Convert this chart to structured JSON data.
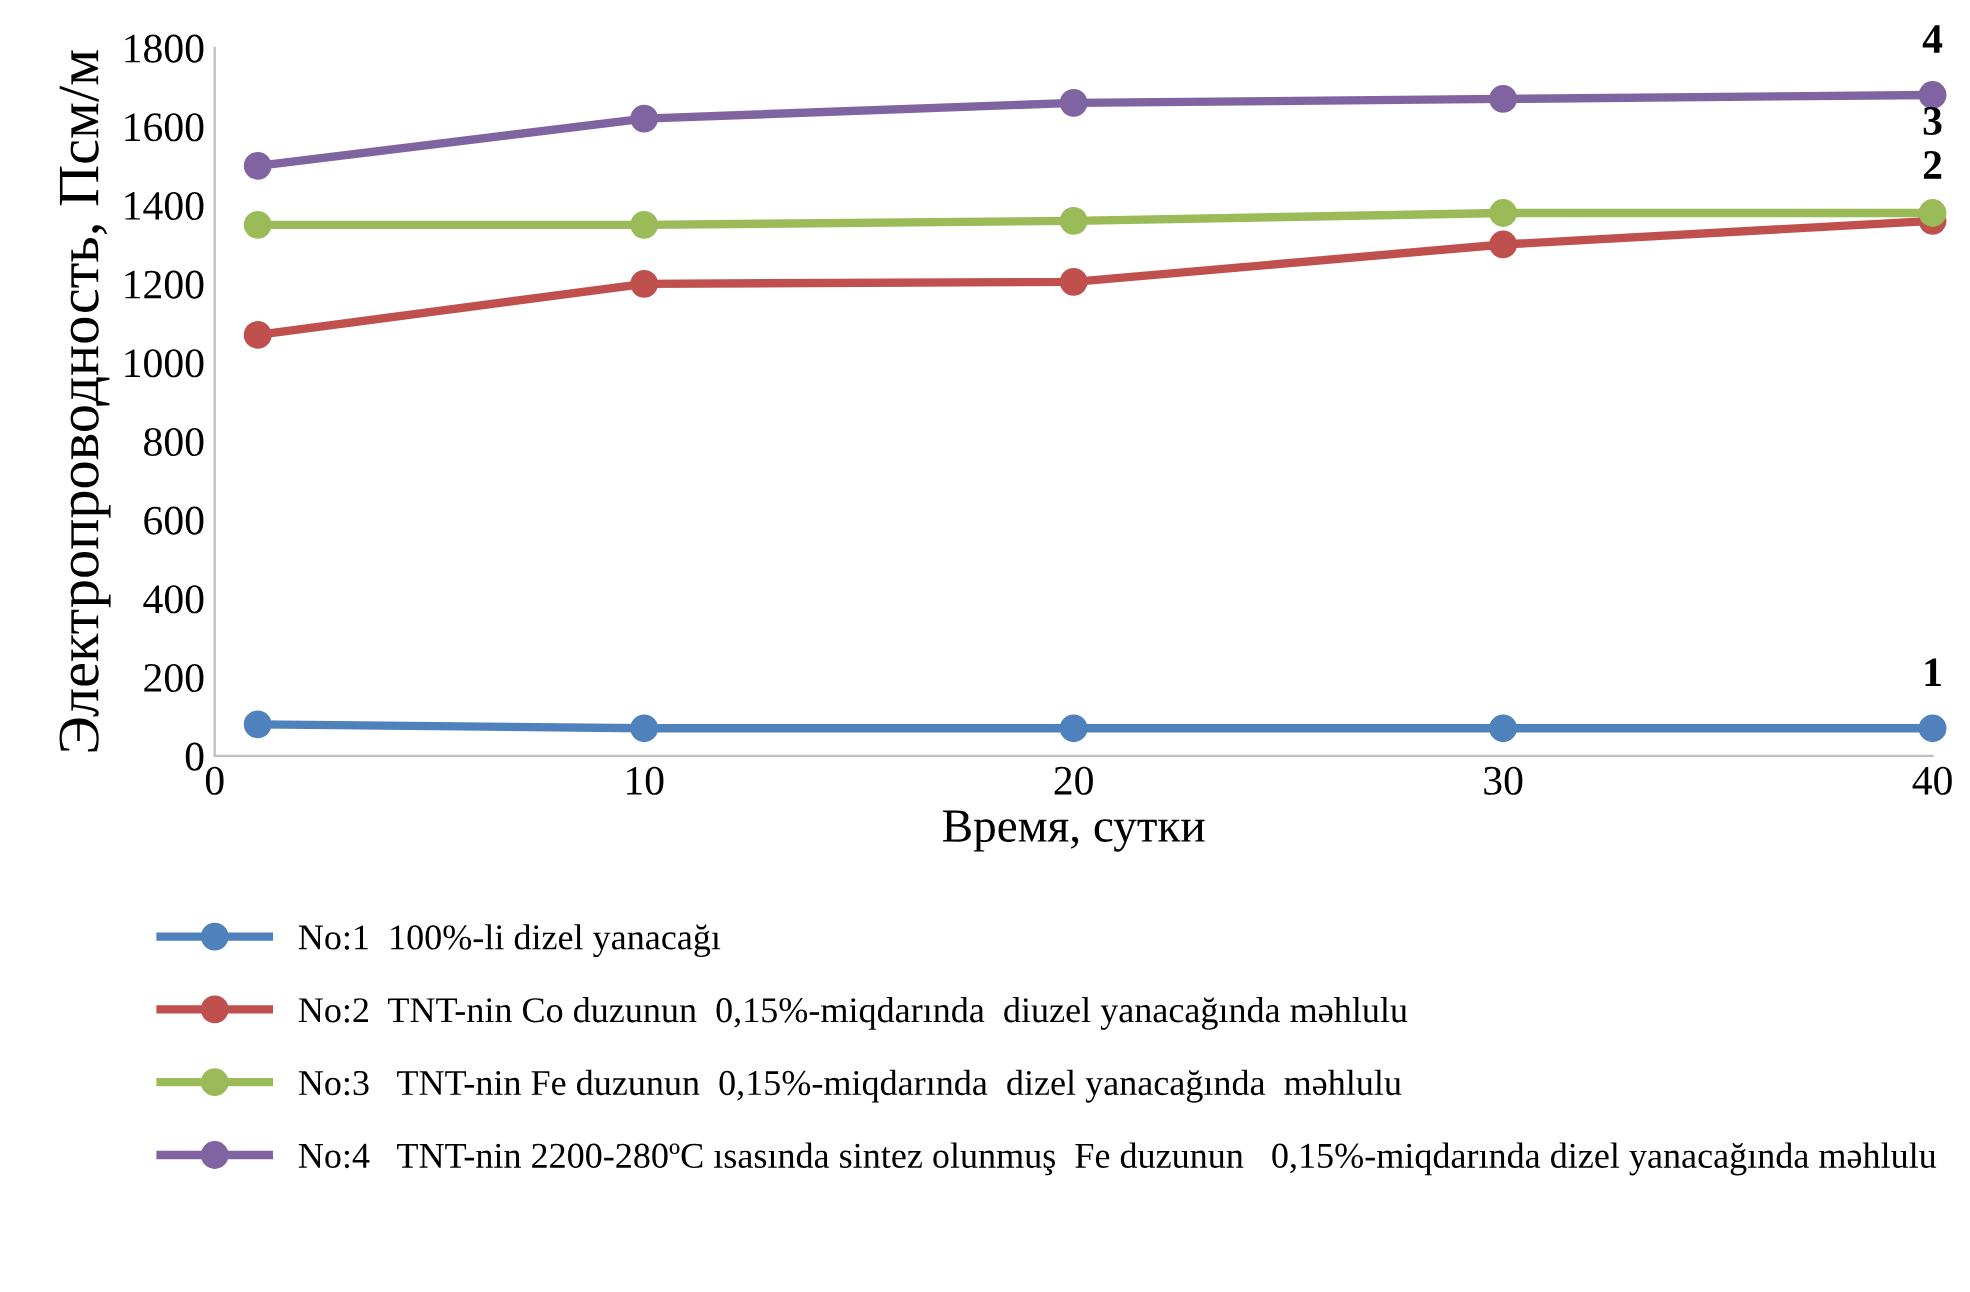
{
  "chart_data": {
    "type": "line",
    "xlabel": "Время, сутки",
    "ylabel": "Электропроводность, Псм/м",
    "x": [
      1,
      10,
      20,
      30,
      40
    ],
    "series": [
      {
        "name": "No:1  100%-li dizel yanacağı",
        "color": "#4f81bd",
        "values": [
          80,
          70,
          70,
          70,
          70
        ]
      },
      {
        "name": "No:2  TNT-nin Co duzunun  0,15%-miqdarında  diuzel yanacağında məhlulu",
        "color": "#c0504d",
        "values": [
          1070,
          1200,
          1205,
          1300,
          1360
        ]
      },
      {
        "name": "No:3   TNT-nin Fe duzunun  0,15%-miqdarında  dizel yanacağında  məhlulu",
        "color": "#9bbb59",
        "values": [
          1350,
          1350,
          1360,
          1380,
          1380
        ]
      },
      {
        "name": "No:4   TNT-nin 2200-280ºC ısasında sintez olunmuş  Fe duzunun   0,15%-miqdarında dizel yanacağında məhlulu",
        "color": "#8064a2",
        "values": [
          1500,
          1620,
          1660,
          1670,
          1680
        ]
      }
    ],
    "annotations": [
      {
        "text": "1",
        "y": 70
      },
      {
        "text": "2",
        "y": 1360
      },
      {
        "text": "3",
        "y": 1380
      },
      {
        "text": "4",
        "y": 1680
      }
    ],
    "xlim": [
      0,
      40
    ],
    "xticks": [
      0,
      10,
      20,
      30,
      40
    ],
    "ylim": [
      0,
      1800
    ],
    "yticks": [
      0,
      200,
      400,
      600,
      800,
      1000,
      1200,
      1400,
      1600,
      1800
    ],
    "grid": false,
    "legend": "bottom",
    "marker": "circle",
    "line_style": "solid"
  }
}
